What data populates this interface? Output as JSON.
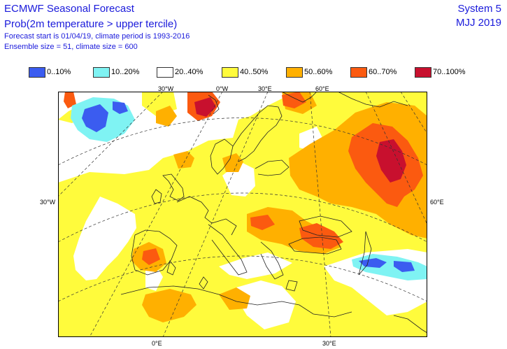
{
  "header": {
    "title": "ECMWF Seasonal Forecast",
    "subtitle": "Prob(2m temperature > upper tercile)",
    "info1": "Forecast start is 01/04/19, climate period is 1993-2016",
    "info2": "Ensemble size = 51, climate size = 600",
    "system": "System 5",
    "season": "MJJ 2019"
  },
  "legend": [
    {
      "label": "0..10%",
      "color": "#3b5cf0"
    },
    {
      "label": "10..20%",
      "color": "#7ff3f3"
    },
    {
      "label": "20..40%",
      "color": "#ffffff"
    },
    {
      "label": "40..50%",
      "color": "#fffb3c"
    },
    {
      "label": "50..60%",
      "color": "#ffb000"
    },
    {
      "label": "60..70%",
      "color": "#fb5a10"
    },
    {
      "label": "70..100%",
      "color": "#c8102e"
    }
  ],
  "axis_labels": {
    "top": [
      "30°W",
      "0°W",
      "30°E",
      "60°E"
    ],
    "left": "30°W",
    "right": "60°E",
    "bottom": [
      "0°E",
      "30°E"
    ]
  }
}
